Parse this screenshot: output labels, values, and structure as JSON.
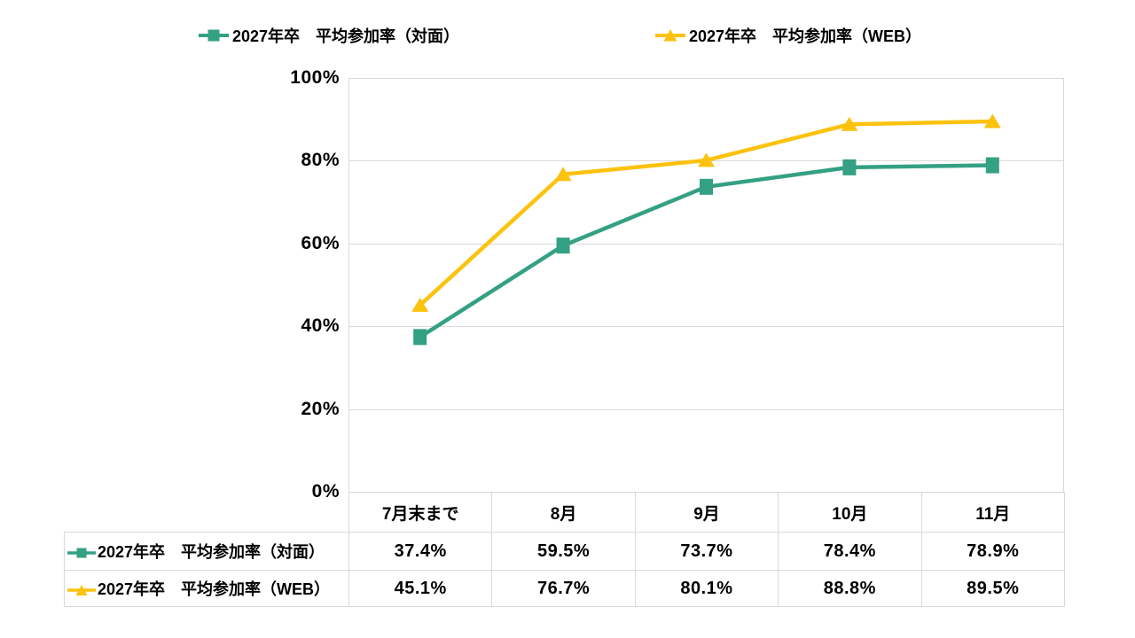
{
  "chart_data": {
    "type": "line",
    "title": "",
    "categories": [
      "7月末まで",
      "8月",
      "9月",
      "10月",
      "11月"
    ],
    "series": [
      {
        "name": "2027年卒　平均参加率（対面）",
        "marker": "square",
        "color": "#34A084",
        "values": [
          37.4,
          59.5,
          73.7,
          78.4,
          78.9
        ],
        "values_display": [
          "37.4%",
          "59.5%",
          "73.7%",
          "78.4%",
          "78.9%"
        ]
      },
      {
        "name": "2027年卒　平均参加率（WEB）",
        "marker": "triangle",
        "color": "#FCC20E",
        "values": [
          45.1,
          76.7,
          80.1,
          88.8,
          89.5
        ],
        "values_display": [
          "45.1%",
          "76.7%",
          "80.1%",
          "88.8%",
          "89.5%"
        ]
      }
    ],
    "ylim": [
      0,
      100
    ],
    "yticks": [
      {
        "value": 100,
        "label": "100%"
      },
      {
        "value": 80,
        "label": "80%"
      },
      {
        "value": 60,
        "label": "60%"
      },
      {
        "value": 40,
        "label": "40%"
      },
      {
        "value": 20,
        "label": "20%"
      },
      {
        "value": 0,
        "label": "0%"
      }
    ],
    "grid": "horizontal",
    "legend_position": "top",
    "data_table_shown": true
  },
  "colors": {
    "background": "#FFFFFF",
    "grid": "#D9D9D9",
    "table_border": "#D9D9D9",
    "text": "#000000"
  }
}
